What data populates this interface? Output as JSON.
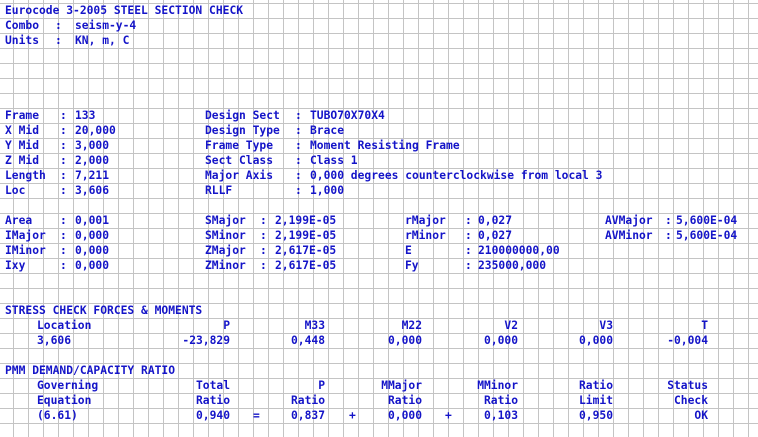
{
  "header": {
    "title": "Eurocode 3-2005 STEEL SECTION CHECK",
    "combo_label": "Combo",
    "combo_value": "seism-y-4",
    "units_label": "Units",
    "units_value": "KN, m, C"
  },
  "info": {
    "left": [
      {
        "label": "Frame",
        "value": "133"
      },
      {
        "label": "X Mid",
        "value": "20,000"
      },
      {
        "label": "Y Mid",
        "value": "3,000"
      },
      {
        "label": "Z Mid",
        "value": "2,000"
      },
      {
        "label": "Length",
        "value": "7,211"
      },
      {
        "label": "Loc",
        "value": "3,606"
      }
    ],
    "right": [
      {
        "label": "Design Sect",
        "value": "TUBO70X70X4"
      },
      {
        "label": "Design Type",
        "value": "Brace"
      },
      {
        "label": "Frame Type ",
        "value": "Moment Resisting Frame"
      },
      {
        "label": "Sect Class ",
        "value": "Class 1"
      },
      {
        "label": "Major Axis ",
        "value": "0,000 degrees counterclockwise from local 3"
      },
      {
        "label": "RLLF       ",
        "value": "1,000"
      }
    ]
  },
  "props": {
    "col1": [
      {
        "label": "Area",
        "value": "0,001"
      },
      {
        "label": "IMajor",
        "value": "0,000"
      },
      {
        "label": "IMinor",
        "value": "0,000"
      },
      {
        "label": "Ixy",
        "value": "0,000"
      }
    ],
    "col2": [
      {
        "label": "SMajor",
        "value": "2,199E-05"
      },
      {
        "label": "SMinor",
        "value": "2,199E-05"
      },
      {
        "label": "ZMajor",
        "value": "2,617E-05"
      },
      {
        "label": "ZMinor",
        "value": "2,617E-05"
      }
    ],
    "col3": [
      {
        "label": "rMajor",
        "value": "0,027"
      },
      {
        "label": "rMinor",
        "value": "0,027"
      },
      {
        "label": "E     ",
        "value": "210000000,00"
      },
      {
        "label": "Fy    ",
        "value": "235000,000"
      }
    ],
    "col4": [
      {
        "label": "AVMajor",
        "value": "5,600E-04"
      },
      {
        "label": "AVMinor",
        "value": "5,600E-04"
      }
    ]
  },
  "stress": {
    "title": "STRESS CHECK FORCES & MOMENTS",
    "headers": [
      "Location",
      "P",
      "M33",
      "M22",
      "V2",
      "V3",
      "T"
    ],
    "values": [
      "3,606",
      "-23,829",
      "0,448",
      "0,000",
      "0,000",
      "0,000",
      "-0,004"
    ]
  },
  "pmm": {
    "title": "PMM DEMAND/CAPACITY RATIO",
    "headers1": [
      "Governing",
      "Total",
      "P",
      "MMajor",
      "MMinor",
      "Ratio",
      "Status"
    ],
    "headers2": [
      "Equation",
      "Ratio",
      "Ratio",
      "Ratio",
      "Ratio",
      "Limit",
      "Check"
    ],
    "values": [
      "(6.61)",
      "0,940",
      "=",
      "0,837",
      "+",
      "0,000",
      "+",
      "0,103",
      "0,950",
      "OK"
    ]
  }
}
